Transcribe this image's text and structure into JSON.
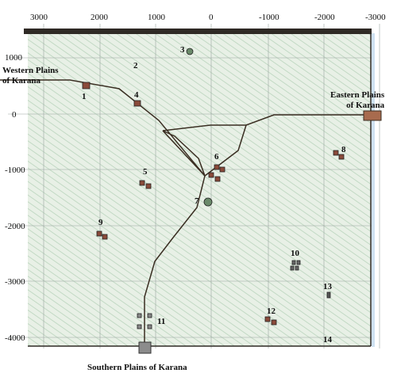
{
  "axes": {
    "x_ticks": [
      "3000",
      "2000",
      "1000",
      "0",
      "-1000",
      "-2000",
      "-3000"
    ],
    "y_ticks": [
      "1000",
      "0",
      "-1000",
      "-2000",
      "-3000",
      "-4000"
    ]
  },
  "regions": {
    "west_line1": "Western Plains",
    "west_line2": "of Karana",
    "east_line1": "Eastern Plains",
    "east_line2": "of Karana",
    "south": "Southern Plains of Karana"
  },
  "markers": [
    "1",
    "2",
    "3",
    "4",
    "5",
    "6",
    "7",
    "8",
    "9",
    "10",
    "11",
    "12",
    "13",
    "14"
  ],
  "colors": {
    "background": "#e8f0e6",
    "hatch": "#b9d4bc",
    "road": "#3a2e22",
    "border": "#2f2a25",
    "building": "#8a4a3a"
  }
}
